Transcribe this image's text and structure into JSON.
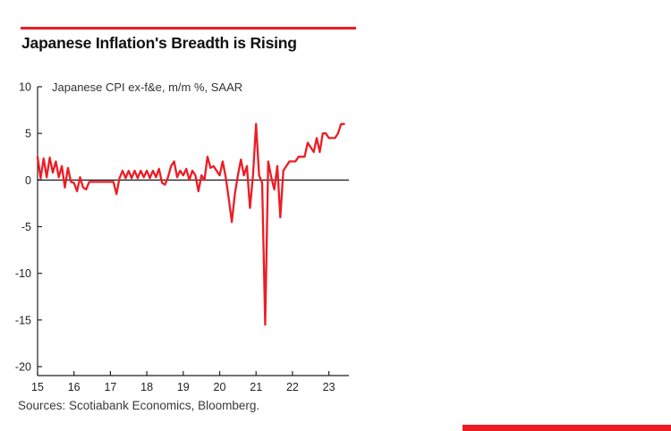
{
  "page": {
    "title": "Japanese Inflation's Breadth is Rising",
    "annotation": "Japanese CPI ex-f&e, m/m %, SAAR",
    "sources": "Sources: Scotiabank Economics, Bloomberg.",
    "accent_color": "#ed1c24"
  },
  "chart_data": {
    "type": "line",
    "title": "Japanese Inflation's Breadth is Rising",
    "subtitle": "Japanese CPI ex-f&e, m/m %, SAAR",
    "xlabel": "",
    "ylabel": "",
    "ylim": [
      -20,
      10
    ],
    "x_range": [
      2015,
      2023.55
    ],
    "y_ticks": [
      10,
      5,
      0,
      -5,
      -10,
      -15,
      -20
    ],
    "x_ticks": [
      "15",
      "16",
      "17",
      "18",
      "19",
      "20",
      "21",
      "22",
      "23"
    ],
    "x_tick_years": [
      2015,
      2016,
      2017,
      2018,
      2019,
      2020,
      2021,
      2022,
      2023
    ],
    "grid": false,
    "legend": "none",
    "line_color": "#ed1c24",
    "axis_color": "#231f20",
    "x_start_year": 2015,
    "points_per_year": 12,
    "series": [
      {
        "name": "Japanese CPI ex-f&e, m/m %, SAAR",
        "values": [
          2.5,
          0.2,
          2.3,
          0.3,
          2.4,
          0.8,
          2.0,
          0.3,
          1.5,
          -0.8,
          1.3,
          -0.2,
          -0.3,
          -1.2,
          0.3,
          -0.8,
          -1.0,
          -0.2,
          -0.2,
          -0.2,
          -0.2,
          -0.2,
          -0.2,
          -0.2,
          -0.2,
          -0.2,
          -1.5,
          0.2,
          1.0,
          0.2,
          1.0,
          0.2,
          1.0,
          0.2,
          1.0,
          0.3,
          1.0,
          0.2,
          1.0,
          0.3,
          1.2,
          -0.3,
          -0.5,
          0.3,
          1.5,
          2.0,
          0.3,
          1.0,
          0.5,
          1.2,
          0.0,
          1.0,
          0.5,
          -1.2,
          0.5,
          0.0,
          2.5,
          1.3,
          1.5,
          1.0,
          0.5,
          2.0,
          0.3,
          -2.0,
          -4.5,
          -1.5,
          0.5,
          2.2,
          0.5,
          1.5,
          -3.0,
          0.5,
          6.0,
          0.5,
          -0.3,
          -15.5,
          2.0,
          0.3,
          -1.0,
          1.5,
          -4.0,
          1.0,
          1.5,
          2.0,
          2.0,
          2.0,
          2.5,
          2.5,
          2.5,
          4.0,
          3.5,
          3.0,
          4.5,
          3.0,
          5.0,
          5.0,
          4.5,
          4.5,
          4.5,
          5.0,
          6.0,
          6.0
        ]
      }
    ]
  }
}
